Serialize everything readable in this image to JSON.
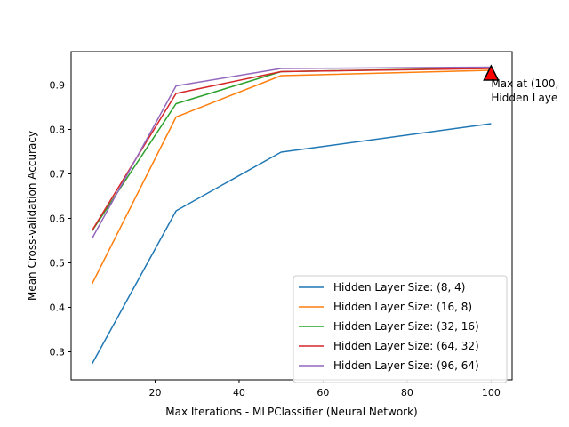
{
  "chart_data": {
    "type": "line",
    "title": "",
    "xlabel": "Max Iterations - MLPClassifier (Neural Network)",
    "ylabel": "Mean Cross-validation Accuracy",
    "xlim": [
      0,
      105
    ],
    "ylim": [
      0.237,
      0.975
    ],
    "x_ticks": [
      20,
      40,
      60,
      80,
      100
    ],
    "y_ticks": [
      0.3,
      0.4,
      0.5,
      0.6,
      0.7,
      0.8,
      0.9
    ],
    "grid": false,
    "legend_position": "lower-right",
    "x": [
      5,
      25,
      50,
      100
    ],
    "series": [
      {
        "name": "Hidden Layer Size: (8, 4)",
        "color": "#1f77b4",
        "values": [
          0.273,
          0.617,
          0.749,
          0.813
        ]
      },
      {
        "name": "Hidden Layer Size: (16, 8)",
        "color": "#ff7f0e",
        "values": [
          0.453,
          0.828,
          0.921,
          0.933
        ]
      },
      {
        "name": "Hidden Layer Size: (32, 16)",
        "color": "#2ca02c",
        "values": [
          0.572,
          0.858,
          0.93,
          0.938
        ]
      },
      {
        "name": "Hidden Layer Size: (64, 32)",
        "color": "#d62728",
        "values": [
          0.573,
          0.881,
          0.93,
          0.937
        ]
      },
      {
        "name": "Hidden Layer Size: (96, 64)",
        "color": "#9467bd",
        "values": [
          0.555,
          0.898,
          0.937,
          0.94
        ]
      }
    ],
    "annotation": {
      "marker": "triangle",
      "marker_color": "#ff0000",
      "x": 100,
      "y": 0.925,
      "text_lines": [
        "Max at (100,",
        "Hidden Laye"
      ]
    }
  }
}
